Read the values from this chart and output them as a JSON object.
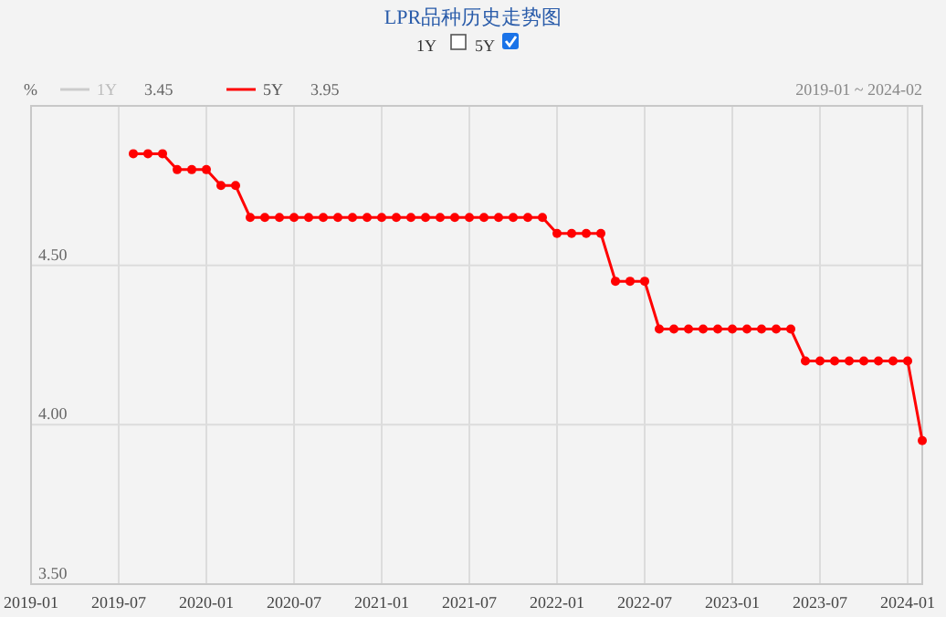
{
  "chart_data": {
    "type": "line",
    "title": "LPR品种历史走势图",
    "ylabel": "%",
    "annotations": [
      "1Y",
      "5Y",
      "3.45",
      "3.95",
      "2019-01 ~ 2024-02"
    ],
    "x": [
      "2019-08",
      "2019-09",
      "2019-10",
      "2019-11",
      "2019-12",
      "2020-01",
      "2020-02",
      "2020-03",
      "2020-04",
      "2020-05",
      "2020-06",
      "2020-07",
      "2020-08",
      "2020-09",
      "2020-10",
      "2020-11",
      "2020-12",
      "2021-01",
      "2021-02",
      "2021-03",
      "2021-04",
      "2021-05",
      "2021-06",
      "2021-07",
      "2021-08",
      "2021-09",
      "2021-10",
      "2021-11",
      "2021-12",
      "2022-01",
      "2022-02",
      "2022-03",
      "2022-04",
      "2022-05",
      "2022-06",
      "2022-07",
      "2022-08",
      "2022-09",
      "2022-10",
      "2022-11",
      "2022-12",
      "2023-01",
      "2023-02",
      "2023-03",
      "2023-04",
      "2023-05",
      "2023-06",
      "2023-07",
      "2023-08",
      "2023-09",
      "2023-10",
      "2023-11",
      "2023-12",
      "2024-01",
      "2024-02"
    ],
    "series": [
      {
        "name": "1Y",
        "color": "#cccccc",
        "values": [
          null,
          null,
          null,
          null,
          null,
          null,
          null,
          null,
          null,
          null,
          null,
          null,
          null,
          null,
          null,
          null,
          null,
          null,
          null,
          null,
          null,
          null,
          null,
          null,
          null,
          null,
          null,
          null,
          null,
          null,
          null,
          null,
          null,
          null,
          null,
          null,
          null,
          null,
          null,
          null,
          null,
          null,
          null,
          null,
          null,
          null,
          null,
          null,
          null,
          null,
          null,
          null,
          null,
          null,
          null
        ]
      },
      {
        "name": "5Y",
        "color": "#ff0000",
        "values": [
          4.85,
          4.85,
          4.85,
          4.8,
          4.8,
          4.8,
          4.75,
          4.75,
          4.65,
          4.65,
          4.65,
          4.65,
          4.65,
          4.65,
          4.65,
          4.65,
          4.65,
          4.65,
          4.65,
          4.65,
          4.65,
          4.65,
          4.65,
          4.65,
          4.65,
          4.65,
          4.65,
          4.65,
          4.65,
          4.6,
          4.6,
          4.6,
          4.6,
          4.45,
          4.45,
          4.45,
          4.3,
          4.3,
          4.3,
          4.3,
          4.3,
          4.3,
          4.3,
          4.3,
          4.3,
          4.3,
          4.2,
          4.2,
          4.2,
          4.2,
          4.2,
          4.2,
          4.2,
          4.2,
          3.95
        ]
      }
    ],
    "xlim": [
      "2019-01",
      "2024-02"
    ],
    "xticks": [
      "2019-01",
      "2019-07",
      "2020-01",
      "2020-07",
      "2021-01",
      "2021-07",
      "2022-01",
      "2022-07",
      "2023-01",
      "2023-07",
      "2024-01"
    ],
    "ylim": [
      3.5,
      5.0
    ],
    "yticks": [
      {
        "value": 3.5,
        "label": "3.50"
      },
      {
        "value": 4.0,
        "label": "4.00"
      },
      {
        "value": 4.5,
        "label": "4.50"
      }
    ],
    "grid": true,
    "legend": "top left",
    "marker": "circle",
    "line_style": "solid"
  }
}
